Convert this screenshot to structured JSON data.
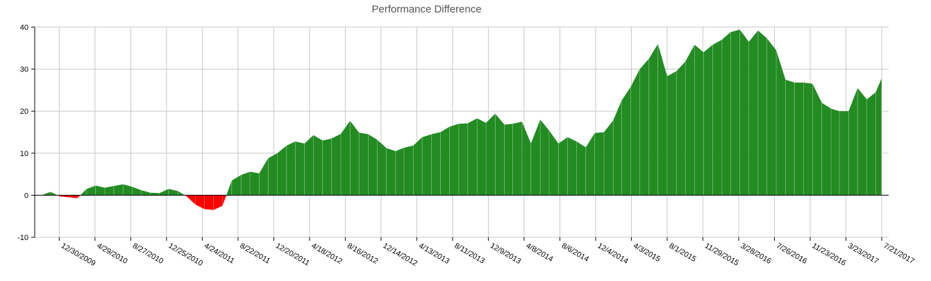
{
  "chart_data": {
    "type": "area",
    "title": "Performance Difference",
    "xlabel": "",
    "ylabel": "",
    "ylim": [
      -10,
      40
    ],
    "yticks": [
      -10,
      0,
      10,
      20,
      30,
      40
    ],
    "xticks": [
      "12/30/2009",
      "4/29/2010",
      "8/27/2010",
      "12/25/2010",
      "4/24/2011",
      "8/22/2011",
      "12/20/2011",
      "4/18/2012",
      "8/16/2012",
      "12/14/2012",
      "4/13/2013",
      "8/11/2013",
      "12/9/2013",
      "4/8/2014",
      "8/6/2014",
      "12/4/2014",
      "4/3/2015",
      "8/1/2015",
      "11/29/2015",
      "3/28/2016",
      "7/26/2016",
      "11/23/2016",
      "3/23/2017",
      "7/21/2017"
    ],
    "x_start": "11/1/2009",
    "x_end": "7/21/2017",
    "points_step": "monthly",
    "positive_color": "#228b22",
    "negative_color": "#ff0000",
    "values": [
      0,
      0.8,
      -0.3,
      -0.5,
      -0.7,
      1.5,
      2.3,
      1.8,
      2.2,
      2.6,
      2.0,
      1.2,
      0.6,
      0.5,
      1.5,
      1.0,
      -0.2,
      -2.2,
      -3.3,
      -3.5,
      -2.5,
      3.5,
      4.8,
      5.6,
      5.2,
      8.8,
      10.0,
      11.8,
      12.8,
      12.3,
      14.3,
      13.0,
      13.5,
      14.6,
      17.7,
      14.9,
      14.5,
      13.2,
      11.2,
      10.5,
      11.3,
      11.8,
      13.8,
      14.5,
      15.0,
      16.3,
      17.0,
      17.1,
      18.3,
      17.2,
      19.4,
      16.8,
      17.0,
      17.5,
      12.3,
      18.0,
      15.4,
      12.3,
      13.8,
      12.8,
      11.4,
      14.8,
      15.0,
      17.8,
      22.5,
      25.8,
      30.0,
      32.5,
      36.0,
      28.3,
      29.5,
      31.8,
      35.8,
      34.0,
      35.8,
      37.0,
      38.8,
      39.4,
      36.5,
      39.2,
      37.3,
      34.5,
      27.5,
      26.8,
      26.8,
      26.5,
      22.0,
      20.6,
      20.0,
      20.0,
      25.5,
      22.8,
      24.5,
      27.9,
      25.6,
      22.3
    ]
  }
}
